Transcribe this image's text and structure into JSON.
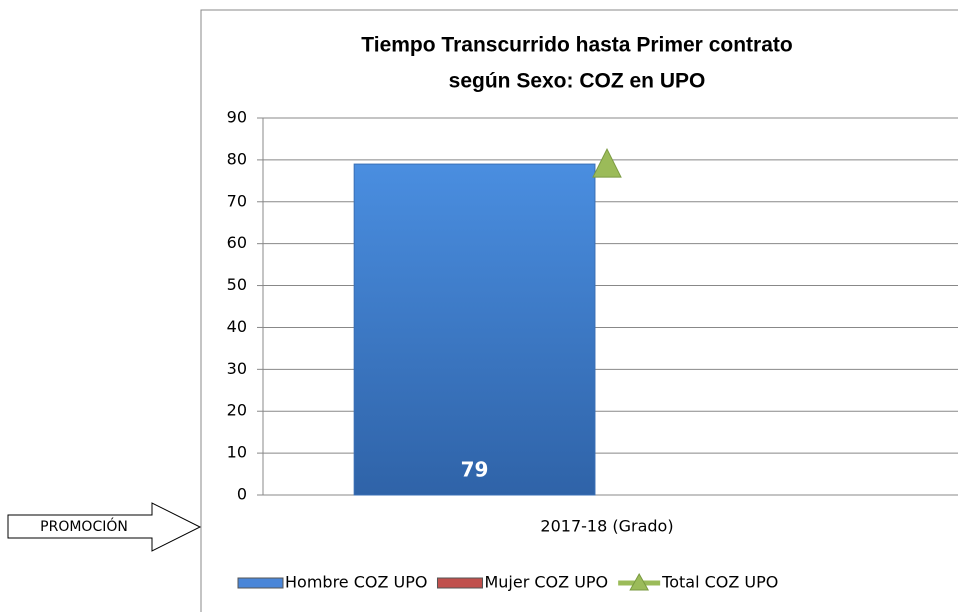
{
  "chart_data": {
    "type": "bar",
    "title": [
      "Tiempo Transcurrido hasta Primer contrato",
      "según Sexo: COZ en UPO"
    ],
    "annotation": "PROMOCIÓN",
    "categories": [
      "2017-18 (Grado)"
    ],
    "series": [
      {
        "name": "Hombre COZ UPO",
        "color": "#4a86d8",
        "type": "bar",
        "values": [
          79
        ]
      },
      {
        "name": "Mujer COZ UPO",
        "color": "#c0504d",
        "type": "bar",
        "values": [
          null
        ]
      },
      {
        "name": "Total COZ UPO",
        "color": "#9bbb59",
        "type": "line",
        "values": [
          79
        ]
      }
    ],
    "ylim": [
      0,
      90
    ],
    "yticks": [
      0,
      10,
      20,
      30,
      40,
      50,
      60,
      70,
      80,
      90
    ],
    "grid": true,
    "legend": "bottom"
  }
}
